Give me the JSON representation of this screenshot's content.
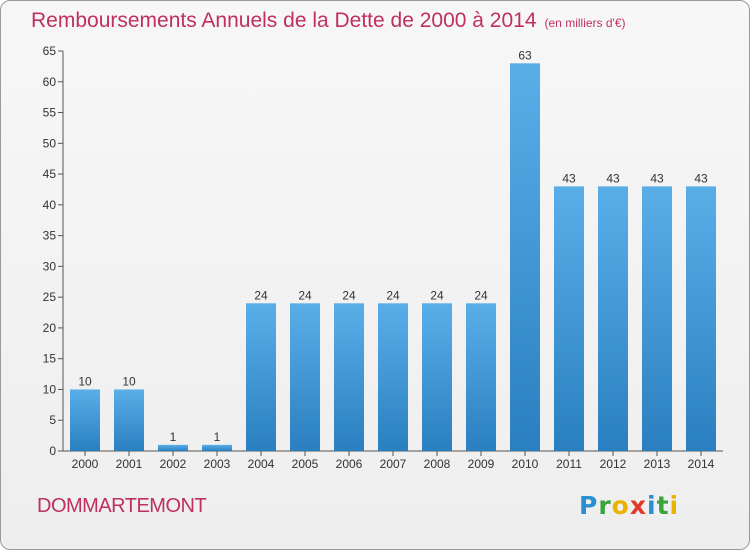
{
  "header": {
    "title": "Remboursements Annuels de la Dette de 2000 à 2014",
    "subtitle": "(en milliers d'€)"
  },
  "footer": {
    "commune": "DOMMARTEMONT",
    "logo": [
      "P",
      "r",
      "o",
      "x",
      "i",
      "t",
      "i"
    ]
  },
  "colors": {
    "bar_top": "#5aaee8",
    "bar_bottom": "#2a7fc0",
    "title": "#c0305c"
  },
  "chart_data": {
    "type": "bar",
    "title": "Remboursements Annuels de la Dette de 2000 à 2014",
    "subtitle": "(en milliers d'€)",
    "categories": [
      "2000",
      "2001",
      "2002",
      "2003",
      "2004",
      "2005",
      "2006",
      "2007",
      "2008",
      "2009",
      "2010",
      "2011",
      "2012",
      "2013",
      "2014"
    ],
    "values": [
      10,
      10,
      1,
      1,
      24,
      24,
      24,
      24,
      24,
      24,
      63,
      43,
      43,
      43,
      43
    ],
    "data_labels": [
      "10",
      "10",
      "1",
      "1",
      "24",
      "24",
      "24",
      "24",
      "24",
      "24",
      "63",
      "43",
      "43",
      "43",
      "43"
    ],
    "ylim": [
      0,
      65
    ],
    "yticks": [
      "0",
      "5",
      "10",
      "15",
      "20",
      "25",
      "30",
      "35",
      "40",
      "45",
      "50",
      "55",
      "60",
      "65"
    ],
    "grid": false,
    "legend": "none"
  }
}
